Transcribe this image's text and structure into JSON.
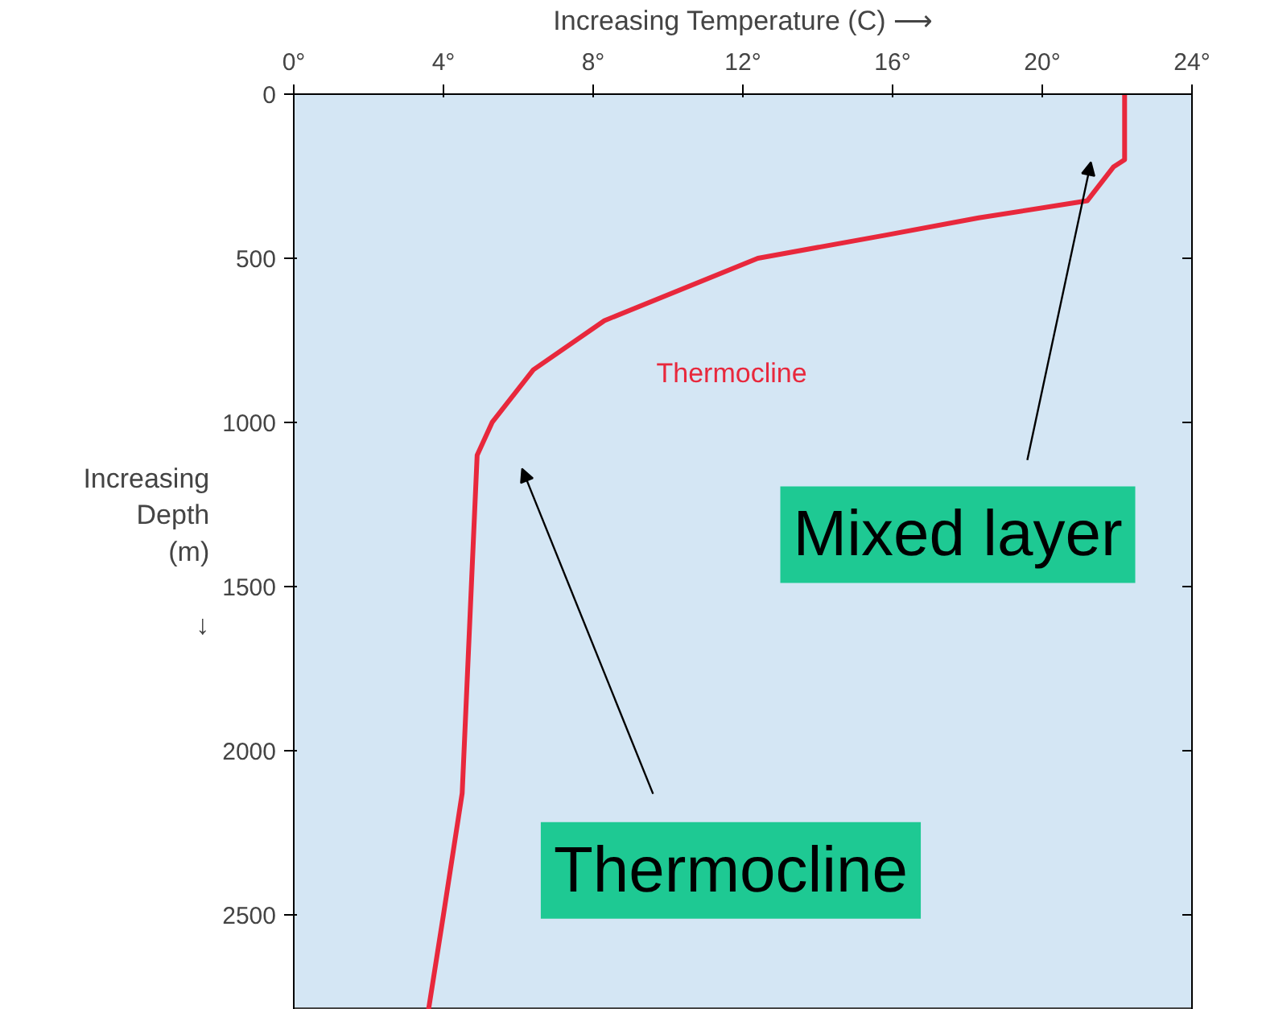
{
  "chart_data": {
    "type": "line",
    "xlabel": "Increasing Temperature (C) ⟶",
    "ylabel": "Increasing\nDepth\n(m)\n\n↓",
    "x": [
      22.2,
      22.2,
      21.9,
      21.2,
      18.3,
      15.8,
      12.4,
      8.3,
      6.4,
      5.3,
      4.9,
      4.5,
      4.0,
      3.6
    ],
    "series": [
      {
        "color": "#e8283c",
        "values": [
          0,
          200,
          222,
          325,
          377,
          430,
          500,
          690,
          840,
          1000,
          1100,
          2130,
          2500,
          2790
        ]
      }
    ],
    "xlim": [
      0,
      24
    ],
    "ylim": [
      2790,
      0
    ],
    "xticks": [
      {
        "value": 0,
        "label": "0°"
      },
      {
        "value": 4,
        "label": "4°"
      },
      {
        "value": 8,
        "label": "8°"
      },
      {
        "value": 12,
        "label": "12°"
      },
      {
        "value": 16,
        "label": "16°"
      },
      {
        "value": 20,
        "label": "20°"
      },
      {
        "value": 24,
        "label": "24°"
      }
    ],
    "yticks": [
      0,
      500,
      1000,
      1500,
      2000,
      2500
    ],
    "grid": false,
    "marker": "none",
    "line_style": "solid",
    "annotations": [
      "Thermocline",
      "Mixed layer",
      "Thermocline"
    ]
  }
}
